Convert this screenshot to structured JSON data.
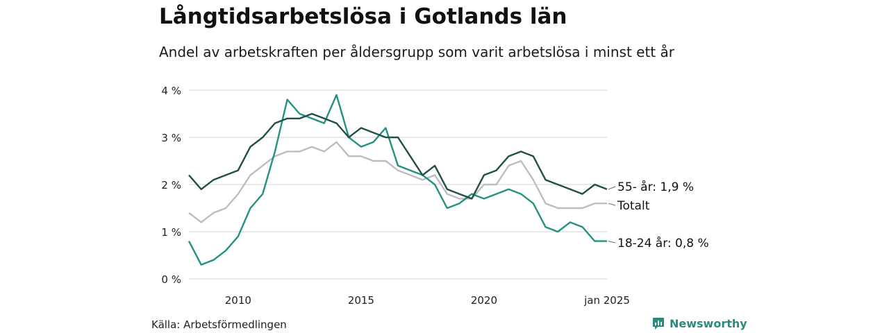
{
  "title": "Långtidsarbetslösa i Gotlands län",
  "subtitle": "Andel av arbetskraften per åldersgrupp som varit arbetslösa i minst ett år",
  "source": "Källa: Arbetsförmedlingen",
  "brand": "Newsworthy",
  "chart_data": {
    "type": "line",
    "x_range": [
      "2008-01",
      "2025-01"
    ],
    "ylim": [
      0,
      4
    ],
    "yticks": [
      0,
      1,
      2,
      3,
      4
    ],
    "ytick_labels": [
      "0 %",
      "1 %",
      "2 %",
      "3 %",
      "4 %"
    ],
    "xticks": [
      2010,
      2015,
      2020,
      2025
    ],
    "xtick_labels": [
      "2010",
      "2015",
      "2020",
      "jan 2025"
    ],
    "grid": "horizontal",
    "x": [
      2008.0,
      2008.5,
      2009.0,
      2009.5,
      2010.0,
      2010.5,
      2011.0,
      2011.5,
      2012.0,
      2012.5,
      2013.0,
      2013.5,
      2014.0,
      2014.5,
      2015.0,
      2015.5,
      2016.0,
      2016.5,
      2017.0,
      2017.5,
      2018.0,
      2018.5,
      2019.0,
      2019.5,
      2020.0,
      2020.5,
      2021.0,
      2021.5,
      2022.0,
      2022.5,
      2023.0,
      2023.5,
      2024.0,
      2024.5,
      2025.0
    ],
    "series": [
      {
        "name": "55- år",
        "end_label": "55- år: 1,9 %",
        "color": "#1f4f46",
        "values": [
          2.2,
          1.9,
          2.1,
          2.2,
          2.3,
          2.8,
          3.0,
          3.3,
          3.4,
          3.4,
          3.5,
          3.4,
          3.3,
          3.0,
          3.2,
          3.1,
          3.0,
          3.0,
          2.6,
          2.2,
          2.4,
          1.9,
          1.8,
          1.7,
          2.2,
          2.3,
          2.6,
          2.7,
          2.6,
          2.1,
          2.0,
          1.9,
          1.8,
          2.0,
          1.9
        ]
      },
      {
        "name": "Totalt",
        "end_label": "Totalt",
        "color": "#bdbcc4",
        "values": [
          1.4,
          1.2,
          1.4,
          1.5,
          1.8,
          2.2,
          2.4,
          2.6,
          2.7,
          2.7,
          2.8,
          2.7,
          2.9,
          2.6,
          2.6,
          2.5,
          2.5,
          2.3,
          2.2,
          2.1,
          2.2,
          1.8,
          1.7,
          1.7,
          2.0,
          2.0,
          2.4,
          2.5,
          2.1,
          1.6,
          1.5,
          1.5,
          1.5,
          1.6,
          1.6
        ]
      },
      {
        "name": "18-24 år",
        "end_label": "18-24 år: 0,8 %",
        "color": "#23917f",
        "values": [
          0.8,
          0.3,
          0.4,
          0.6,
          0.9,
          1.5,
          1.8,
          2.7,
          3.8,
          3.5,
          3.4,
          3.3,
          3.9,
          3.0,
          2.8,
          2.9,
          3.2,
          2.4,
          2.3,
          2.2,
          2.0,
          1.5,
          1.6,
          1.8,
          1.7,
          1.8,
          1.9,
          1.8,
          1.6,
          1.1,
          1.0,
          1.2,
          1.1,
          0.8,
          0.8
        ]
      }
    ]
  }
}
